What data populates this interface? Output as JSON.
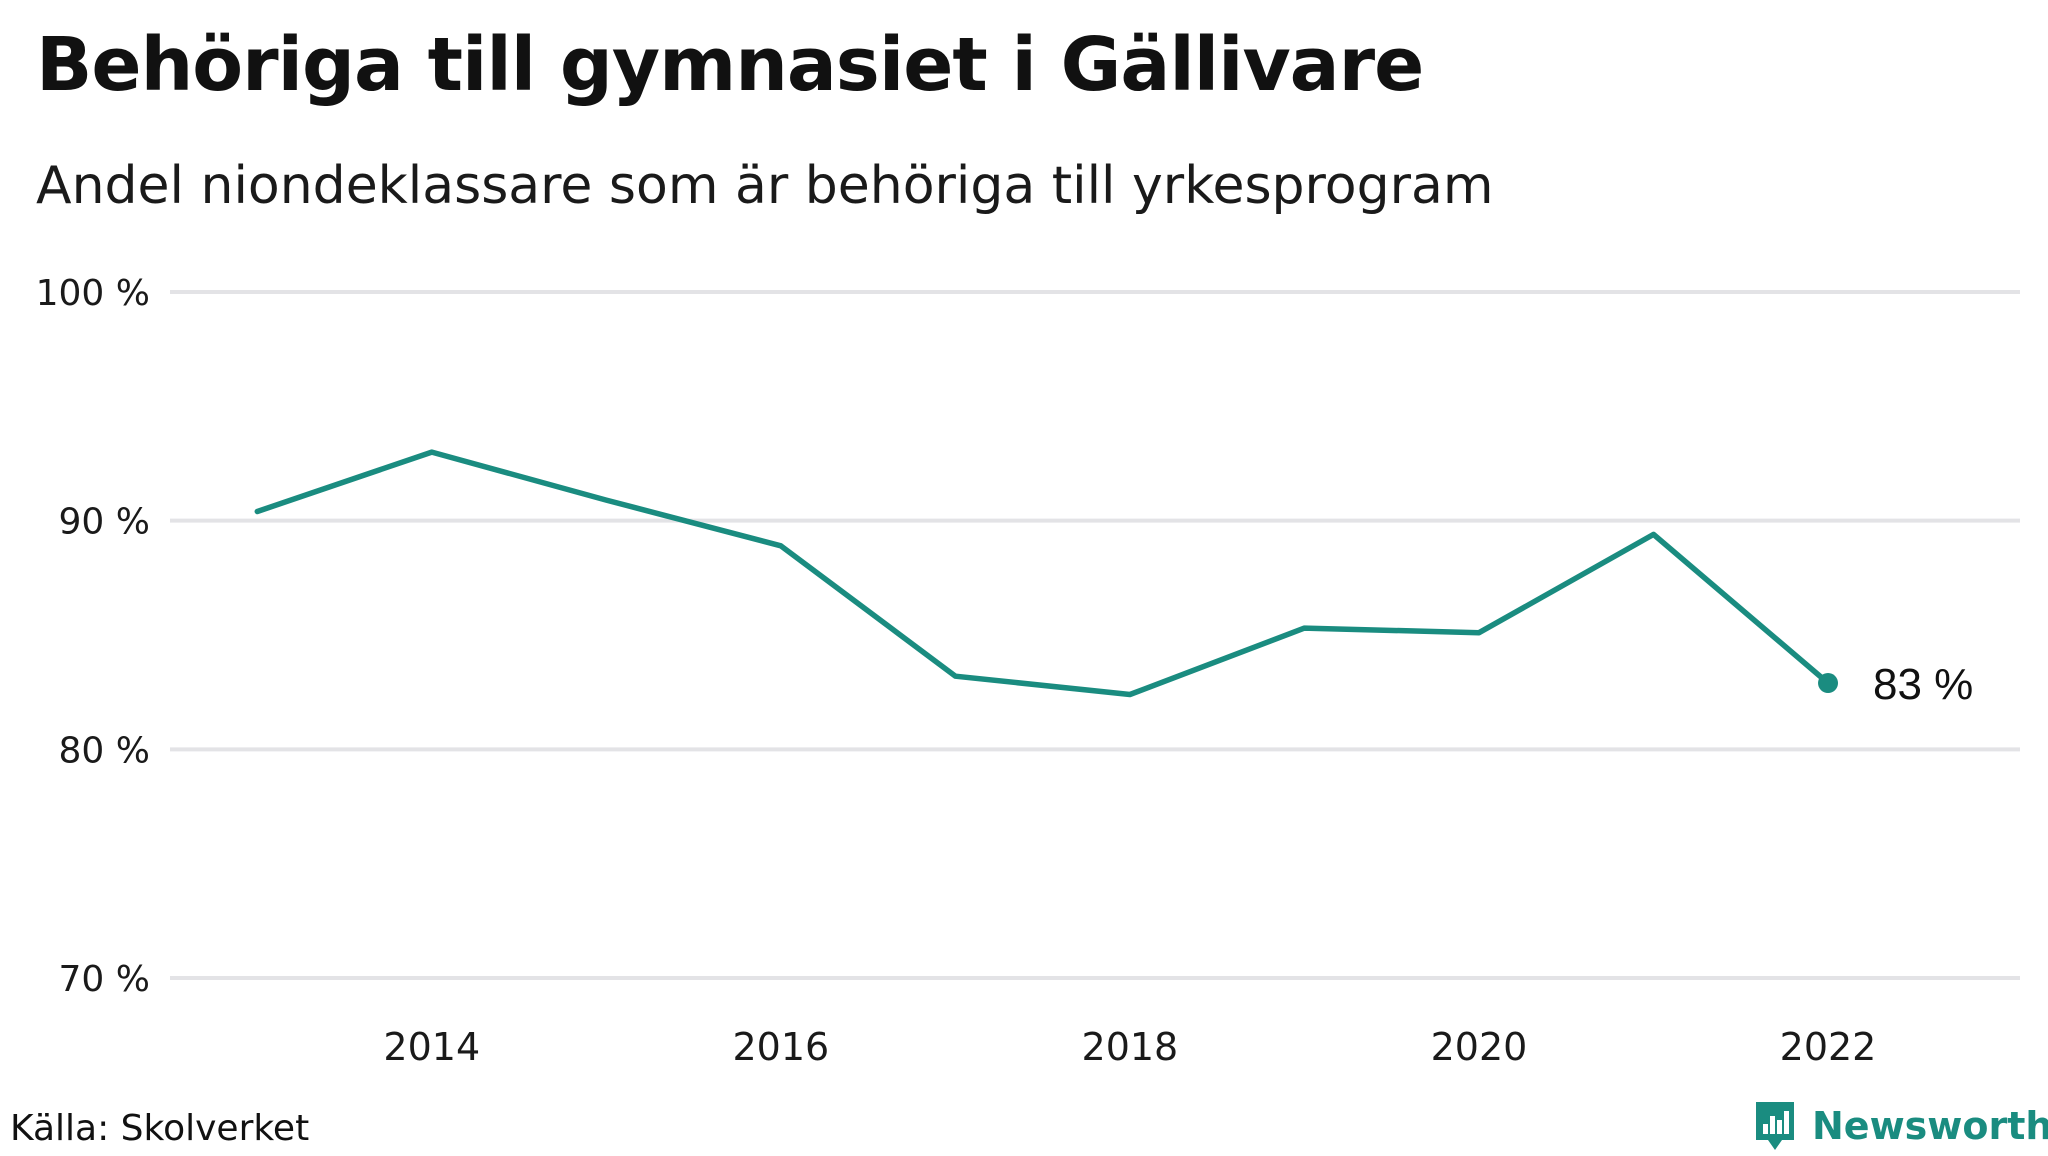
{
  "title": "Behöriga till gymnasiet i Gällivare",
  "subtitle": "Andel niondeklassare som är behöriga till yrkesprogram",
  "source": "Källa: Skolverket",
  "brand": {
    "name": "Newsworthy",
    "icon": "newsworthy-logo-icon",
    "color": "#1a8c80"
  },
  "colors": {
    "line": "#1a8c80",
    "grid": "#e3e3e6",
    "text": "#111111"
  },
  "chart_data": {
    "type": "line",
    "title": "Behöriga till gymnasiet i Gällivare",
    "subtitle": "Andel niondeklassare som är behöriga till yrkesprogram",
    "xlabel": "",
    "ylabel": "",
    "ylim": [
      70,
      100
    ],
    "xlim": [
      2012.5,
      2023.1
    ],
    "grid": "horizontal",
    "legend": "none",
    "y_ticks": [
      {
        "value": 70,
        "label": "70 %"
      },
      {
        "value": 80,
        "label": "80 %"
      },
      {
        "value": 90,
        "label": "90 %"
      },
      {
        "value": 100,
        "label": "100 %"
      }
    ],
    "x_ticks": [
      {
        "value": 2014,
        "label": "2014"
      },
      {
        "value": 2016,
        "label": "2016"
      },
      {
        "value": 2018,
        "label": "2018"
      },
      {
        "value": 2020,
        "label": "2020"
      },
      {
        "value": 2022,
        "label": "2022"
      }
    ],
    "x": [
      2013,
      2014,
      2015,
      2016,
      2017,
      2018,
      2019,
      2020,
      2021,
      2022
    ],
    "values": [
      90.4,
      93.0,
      90.9,
      88.9,
      83.2,
      82.4,
      85.3,
      85.1,
      89.4,
      82.9
    ],
    "end_label": "83  %"
  }
}
